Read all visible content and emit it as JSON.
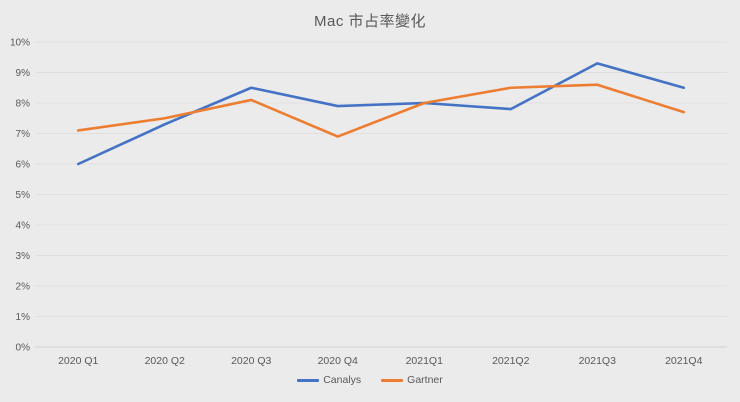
{
  "chart_data": {
    "type": "line",
    "title": "Mac 市占率變化",
    "categories": [
      "2020 Q1",
      "2020 Q2",
      "2020 Q3",
      "2020 Q4",
      "2021Q1",
      "2021Q2",
      "2021Q3",
      "2021Q4"
    ],
    "series": [
      {
        "name": "Canalys",
        "color": "#4472C4",
        "values": [
          6.0,
          7.3,
          8.5,
          7.9,
          8.0,
          7.8,
          9.3,
          8.5
        ]
      },
      {
        "name": "Gartner",
        "color": "#ED7D31",
        "values": [
          7.1,
          7.5,
          8.1,
          6.9,
          8.0,
          8.5,
          8.6,
          7.7
        ]
      }
    ],
    "y_axis": {
      "min": 0,
      "max": 10,
      "step": 1,
      "tick_labels": [
        "0%",
        "1%",
        "2%",
        "3%",
        "4%",
        "5%",
        "6%",
        "7%",
        "8%",
        "9%",
        "10%"
      ]
    },
    "xlabel": "",
    "ylabel": "",
    "grid": true,
    "legend_position": "bottom"
  },
  "colors": {
    "background": "#ebebeb",
    "gridline": "#e0e0e0",
    "axis_line": "#d2d2d2",
    "axis_text": "#595959",
    "title_text": "#595959"
  }
}
